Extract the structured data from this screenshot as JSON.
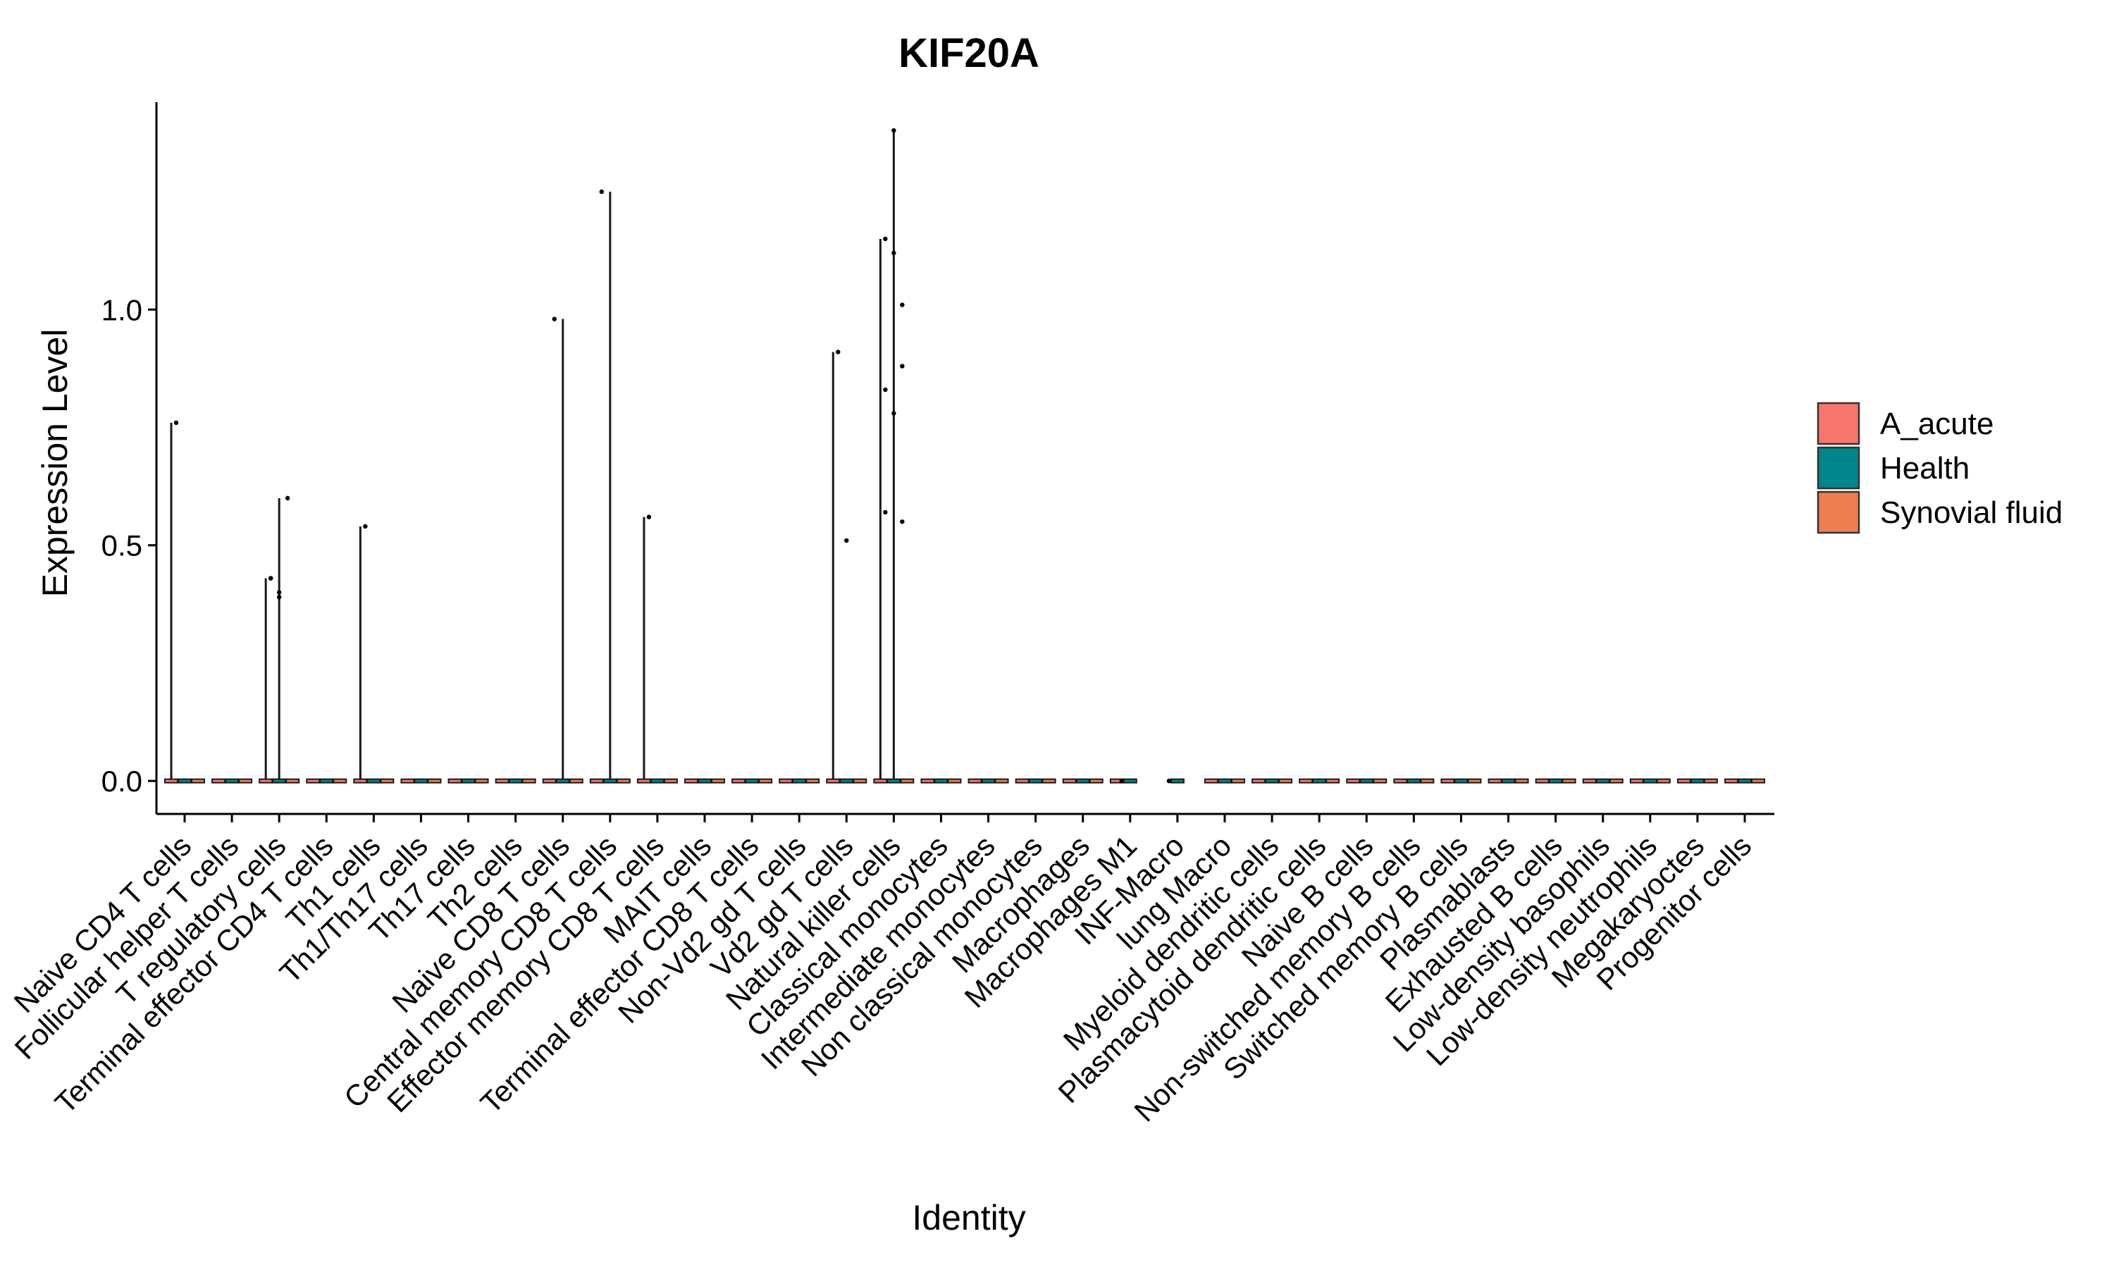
{
  "chart_data": {
    "type": "violin",
    "title": "KIF20A",
    "xlabel": "Identity",
    "ylabel": "Expression Level",
    "ylim": [
      -0.07,
      1.44
    ],
    "yticks": [
      0.0,
      0.5,
      1.0
    ],
    "ytick_labels": [
      "0.0",
      "0.5",
      "1.0"
    ],
    "grid": false,
    "legend_position": "right",
    "legend": [
      {
        "name": "A_acute",
        "color": "#F8766D"
      },
      {
        "name": "Health",
        "color": "#00868B"
      },
      {
        "name": "Synovial fluid",
        "color": "#EE7D4F"
      }
    ],
    "categories": [
      "Naive CD4 T cells",
      "Follicular helper T cells",
      "T regulatory cells",
      "Terminal effector CD4 T cells",
      "Th1 cells",
      "Th1/Th17 cells",
      "Th17 cells",
      "Th2 cells",
      "Naive CD8 T cells",
      "Central memory CD8 T cells",
      "Effector memory CD8 T cells",
      "MAIT cells",
      "Terminal effector CD8 T cells",
      "Non-Vd2 gd T cells",
      "Vd2 gd T cells",
      "Natural killer cells",
      "Classical monocytes",
      "Intermediate monocytes",
      "Non classical monocytes",
      "Macrophages",
      "Macrophages M1",
      "INF-Macro",
      "lung Macro",
      "Myeloid dendritic cells",
      "Plasmacytoid dendritic cells",
      "Naive B cells",
      "Non-switched memory B cells",
      "Switched memory B cells",
      "Plasmablasts",
      "Exhausted B cells",
      "Low-density basophils",
      "Low-density neutrophils",
      "Megakaryoctes",
      "Progenitor cells"
    ],
    "series": [
      {
        "name": "A_acute",
        "max_values": [
          0.76,
          0,
          0.43,
          0,
          0.54,
          0,
          0,
          0,
          0,
          0,
          0.56,
          0,
          0,
          0,
          0.91,
          1.15,
          0,
          0,
          0,
          0,
          0,
          null,
          0,
          0,
          0,
          0,
          0,
          0,
          0,
          0,
          0,
          0,
          0,
          0
        ]
      },
      {
        "name": "Health",
        "max_values": [
          0,
          0,
          0.6,
          0,
          0,
          0,
          0,
          0,
          0.98,
          1.25,
          0,
          0,
          0,
          0,
          0,
          1.38,
          0,
          0,
          0,
          0,
          0,
          0,
          0,
          0,
          0,
          0,
          0,
          0,
          0,
          0,
          0,
          0,
          0,
          0
        ]
      },
      {
        "name": "Synovial fluid",
        "max_values": [
          0,
          0,
          0,
          0,
          0,
          0,
          0,
          0,
          0,
          0,
          0,
          0,
          0,
          0,
          0,
          0,
          0,
          0,
          0,
          0,
          null,
          null,
          0,
          0,
          0,
          0,
          0,
          0,
          0,
          0,
          0,
          0,
          0,
          0
        ]
      }
    ],
    "points": [
      {
        "category": "Naive CD4 T cells",
        "values": [
          0.76
        ]
      },
      {
        "category": "T regulatory cells",
        "values": [
          0.43,
          0.4,
          0.6,
          0.43,
          0.39
        ]
      },
      {
        "category": "Th1 cells",
        "values": [
          0.54
        ]
      },
      {
        "category": "Naive CD8 T cells",
        "values": [
          0.98
        ]
      },
      {
        "category": "Central memory CD8 T cells",
        "values": [
          1.25
        ]
      },
      {
        "category": "Effector memory CD8 T cells",
        "values": [
          0.56
        ]
      },
      {
        "category": "Vd2 gd T cells",
        "values": [
          0.91,
          0.51
        ]
      },
      {
        "category": "Natural killer cells",
        "values": [
          1.15,
          1.12,
          1.01,
          0.57,
          1.38,
          0.88,
          0.83,
          0.78,
          0.55
        ]
      },
      {
        "category": "Macrophages M1",
        "values": [
          0.0
        ]
      },
      {
        "category": "INF-Macro",
        "values": [
          0.0
        ]
      }
    ]
  }
}
